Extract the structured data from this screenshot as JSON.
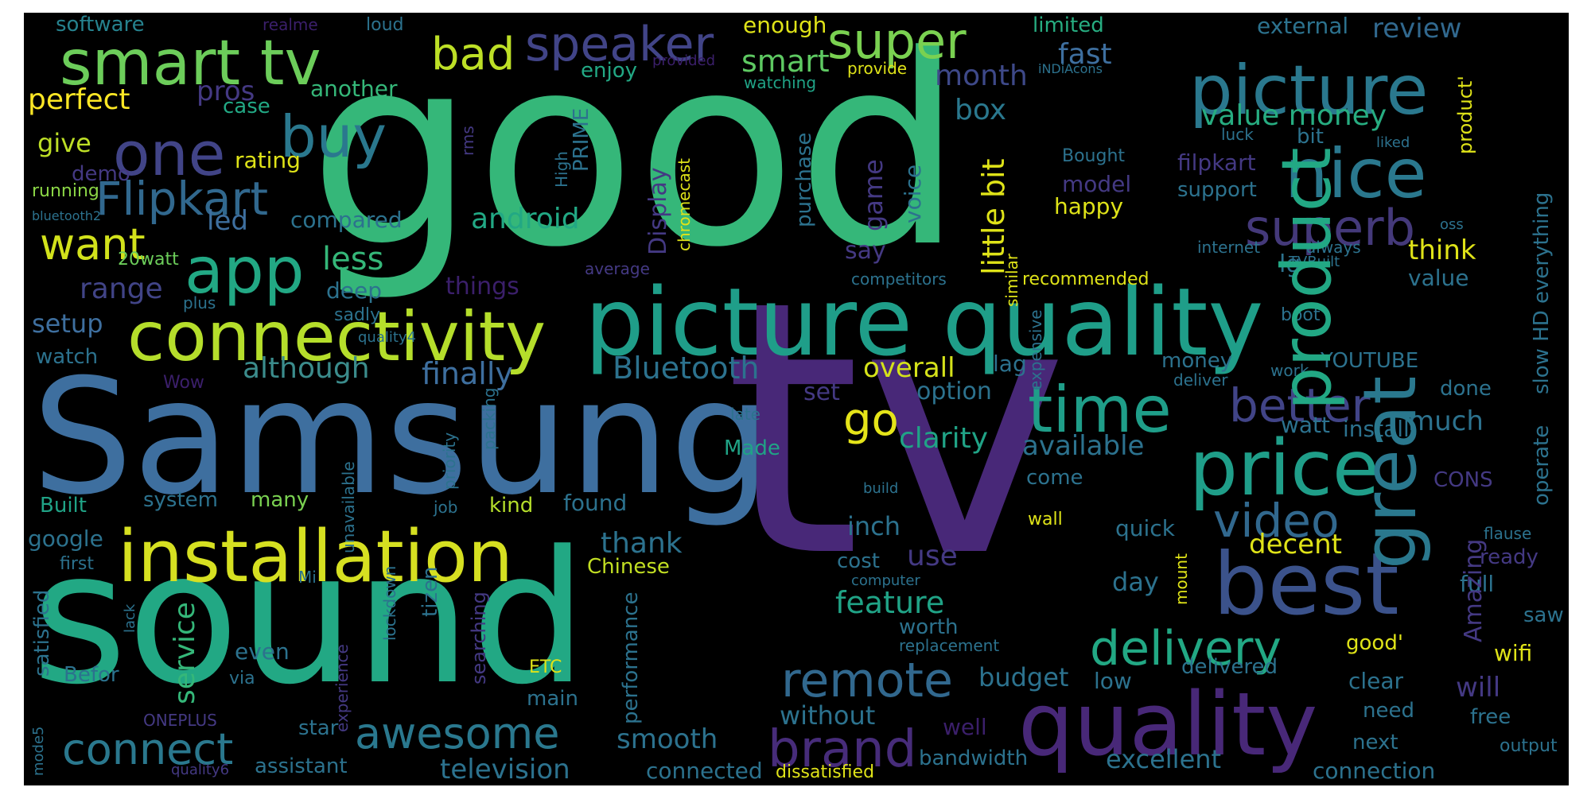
{
  "colors": {
    "background": "#000000",
    "frame": "#ffffff"
  },
  "words": [
    {
      "t": "good",
      "c": "#35b779"
    },
    {
      "t": "tv",
      "c": "#482878"
    },
    {
      "t": "sound",
      "c": "#22a884"
    },
    {
      "t": "Samsung",
      "c": "#3e6f9f"
    },
    {
      "t": "picture quality",
      "c": "#1f9e89"
    },
    {
      "t": "installation",
      "c": "#d6e021"
    },
    {
      "t": "quality",
      "c": "#482878"
    },
    {
      "t": "best",
      "c": "#3b528b"
    },
    {
      "t": "price",
      "c": "#1f9e89"
    },
    {
      "t": "smart tv",
      "c": "#6ccd5a"
    },
    {
      "t": "picture",
      "c": "#2a788e"
    },
    {
      "t": "nice",
      "c": "#2a788e"
    },
    {
      "t": "product",
      "c": "#22a884"
    },
    {
      "t": "connectivity",
      "c": "#b5de2b"
    },
    {
      "t": "great",
      "c": "#2a788e"
    },
    {
      "t": "app",
      "c": "#22a884"
    },
    {
      "t": "one",
      "c": "#414487"
    },
    {
      "t": "buy",
      "c": "#2a788e"
    },
    {
      "t": "Flipkart",
      "c": "#31688e"
    },
    {
      "t": "speaker",
      "c": "#414487"
    },
    {
      "t": "super",
      "c": "#7ad151"
    },
    {
      "t": "bad",
      "c": "#bddf26"
    },
    {
      "t": "superb",
      "c": "#44397a"
    },
    {
      "t": "time",
      "c": "#1f9e89"
    },
    {
      "t": "better",
      "c": "#414487"
    },
    {
      "t": "video",
      "c": "#31688e"
    },
    {
      "t": "delivery",
      "c": "#22a884"
    },
    {
      "t": "remote",
      "c": "#31688e"
    },
    {
      "t": "brand",
      "c": "#472c7a"
    },
    {
      "t": "awesome",
      "c": "#2a788e"
    },
    {
      "t": "connect",
      "c": "#2a788e"
    },
    {
      "t": "want",
      "c": "#d2e21b"
    },
    {
      "t": "go",
      "c": "#e5e419"
    },
    {
      "t": "value money",
      "c": "#27ad81"
    },
    {
      "t": "month",
      "c": "#3e4989"
    },
    {
      "t": "box",
      "c": "#2a788e"
    },
    {
      "t": "software",
      "c": "#26828e"
    },
    {
      "t": "realme",
      "c": "#3b1f6b"
    },
    {
      "t": "loud",
      "c": "#2c728e"
    },
    {
      "t": "enough",
      "c": "#dfe318"
    },
    {
      "t": "limited",
      "c": "#27ad81"
    },
    {
      "t": "external",
      "c": "#2c728e"
    },
    {
      "t": "review",
      "c": "#31688e"
    },
    {
      "t": "fast",
      "c": "#3e6f9f"
    },
    {
      "t": "smart",
      "c": "#5ec962"
    },
    {
      "t": "perfect",
      "c": "#fde725"
    },
    {
      "t": "pros",
      "c": "#443983"
    },
    {
      "t": "enjoy",
      "c": "#22a884"
    },
    {
      "t": "provided",
      "c": "#3b1f6b"
    },
    {
      "t": "provide",
      "c": "#dfe318"
    },
    {
      "t": "iNDiAcons",
      "c": "#2c728e"
    },
    {
      "t": "another",
      "c": "#35b779"
    },
    {
      "t": "watching",
      "c": "#20a386"
    },
    {
      "t": "case",
      "c": "#22a884"
    },
    {
      "t": "give",
      "c": "#bddf26"
    },
    {
      "t": "rating",
      "c": "#dfe318"
    },
    {
      "t": "demo",
      "c": "#443983"
    },
    {
      "t": "running",
      "c": "#8bd646"
    },
    {
      "t": "bluetooth2",
      "c": "#2c728e"
    },
    {
      "t": "led",
      "c": "#3e6f9f"
    },
    {
      "t": "compared",
      "c": "#2c728e"
    },
    {
      "t": "android",
      "c": "#22a884"
    },
    {
      "t": "less",
      "c": "#35b779"
    },
    {
      "t": "20watt",
      "c": "#6ccd5a"
    },
    {
      "t": "range",
      "c": "#414487"
    },
    {
      "t": "deep",
      "c": "#2c728e"
    },
    {
      "t": "plus",
      "c": "#2c728e"
    },
    {
      "t": "sadly",
      "c": "#2c728e"
    },
    {
      "t": "setup",
      "c": "#3e6f9f"
    },
    {
      "t": "quality4",
      "c": "#2c728e"
    },
    {
      "t": "watch",
      "c": "#2c728e"
    },
    {
      "t": "although",
      "c": "#3b8c8c"
    },
    {
      "t": "Wow",
      "c": "#3b1f6b"
    },
    {
      "t": "finally",
      "c": "#3e6f9f"
    },
    {
      "t": "Bluetooth",
      "c": "#2c728e"
    },
    {
      "t": "things",
      "c": "#3b1f6b"
    },
    {
      "t": "overall",
      "c": "#d5e21a"
    },
    {
      "t": "lag",
      "c": "#2c728e"
    },
    {
      "t": "set",
      "c": "#443983"
    },
    {
      "t": "option",
      "c": "#2c728e"
    },
    {
      "t": "clarity",
      "c": "#20a386"
    },
    {
      "t": "available",
      "c": "#2c728e"
    },
    {
      "t": "Made",
      "c": "#20a386"
    },
    {
      "t": "late",
      "c": "#2c728e"
    },
    {
      "t": "build",
      "c": "#2c728e"
    },
    {
      "t": "thank",
      "c": "#2c728e"
    },
    {
      "t": "system",
      "c": "#2c728e"
    },
    {
      "t": "many",
      "c": "#7ad151"
    },
    {
      "t": "Built",
      "c": "#20a386"
    },
    {
      "t": "kind",
      "c": "#b5de2b"
    },
    {
      "t": "found",
      "c": "#2c728e"
    },
    {
      "t": "job",
      "c": "#2c728e"
    },
    {
      "t": "google",
      "c": "#2c728e"
    },
    {
      "t": "first",
      "c": "#2c728e"
    },
    {
      "t": "Chinese",
      "c": "#c2df23"
    },
    {
      "t": "inch",
      "c": "#2c728e"
    },
    {
      "t": "cost",
      "c": "#2c728e"
    },
    {
      "t": "use",
      "c": "#443983"
    },
    {
      "t": "computer",
      "c": "#2c728e"
    },
    {
      "t": "Mi",
      "c": "#2c728e"
    },
    {
      "t": "feature",
      "c": "#20a386"
    },
    {
      "t": "worth",
      "c": "#2c728e"
    },
    {
      "t": "replacement",
      "c": "#2c728e"
    },
    {
      "t": "even",
      "c": "#2c728e"
    },
    {
      "t": "via",
      "c": "#2c728e"
    },
    {
      "t": "Befor",
      "c": "#2c728e"
    },
    {
      "t": "ETC",
      "c": "#dfe318"
    },
    {
      "t": "main",
      "c": "#2c728e"
    },
    {
      "t": "budget",
      "c": "#2c728e"
    },
    {
      "t": "without",
      "c": "#2c728e"
    },
    {
      "t": "well",
      "c": "#3b1f6b"
    },
    {
      "t": "star",
      "c": "#2c728e"
    },
    {
      "t": "ONEPLUS",
      "c": "#443983"
    },
    {
      "t": "quality6",
      "c": "#443983"
    },
    {
      "t": "assistant",
      "c": "#2c728e"
    },
    {
      "t": "smooth",
      "c": "#2c728e"
    },
    {
      "t": "television",
      "c": "#2c728e"
    },
    {
      "t": "connected",
      "c": "#2c728e"
    },
    {
      "t": "dissatisfied",
      "c": "#dfe318"
    },
    {
      "t": "bandwidth",
      "c": "#2c728e"
    },
    {
      "t": "excellent",
      "c": "#2c728e"
    },
    {
      "t": "next",
      "c": "#2c728e"
    },
    {
      "t": "connection",
      "c": "#2c728e"
    },
    {
      "t": "output",
      "c": "#2c728e"
    },
    {
      "t": "low",
      "c": "#2c728e"
    },
    {
      "t": "need",
      "c": "#2c728e"
    },
    {
      "t": "clear",
      "c": "#2c728e"
    },
    {
      "t": "delivered",
      "c": "#2c728e"
    },
    {
      "t": "free",
      "c": "#2c728e"
    },
    {
      "t": "will",
      "c": "#443983"
    },
    {
      "t": "wifi",
      "c": "#dfe318"
    },
    {
      "t": "saw",
      "c": "#2c728e"
    },
    {
      "t": "good'",
      "c": "#dfe318"
    },
    {
      "t": "full",
      "c": "#2c728e"
    },
    {
      "t": "ready",
      "c": "#443983"
    },
    {
      "t": "flause",
      "c": "#2c728e"
    },
    {
      "t": "decent",
      "c": "#dfe318"
    },
    {
      "t": "quick",
      "c": "#2c728e"
    },
    {
      "t": "day",
      "c": "#2c728e"
    },
    {
      "t": "come",
      "c": "#2c728e"
    },
    {
      "t": "wall",
      "c": "#dfe318"
    },
    {
      "t": "done",
      "c": "#2c728e"
    },
    {
      "t": "CONS",
      "c": "#443983"
    },
    {
      "t": "install",
      "c": "#2c728e"
    },
    {
      "t": "watt",
      "c": "#2c728e"
    },
    {
      "t": "much",
      "c": "#2c728e"
    },
    {
      "t": "deliver",
      "c": "#2c728e"
    },
    {
      "t": "money",
      "c": "#2c728e"
    },
    {
      "t": "YOUTUBE",
      "c": "#2c728e"
    },
    {
      "t": "work",
      "c": "#2c728e"
    },
    {
      "t": "boot",
      "c": "#2c728e"
    },
    {
      "t": "value",
      "c": "#2c728e"
    },
    {
      "t": "lg",
      "c": "#2c728e"
    },
    {
      "t": "recommended",
      "c": "#dfe318"
    },
    {
      "t": "competitors",
      "c": "#2c728e"
    },
    {
      "t": "average",
      "c": "#443983"
    },
    {
      "t": "think",
      "c": "#dfe318"
    },
    {
      "t": "internet",
      "c": "#2c728e"
    },
    {
      "t": "always",
      "c": "#2c728e"
    },
    {
      "t": "TVBuilt",
      "c": "#2c728e"
    },
    {
      "t": "happy",
      "c": "#dfe318"
    },
    {
      "t": "model",
      "c": "#443983"
    },
    {
      "t": "support",
      "c": "#2c728e"
    },
    {
      "t": "filpkart",
      "c": "#443983"
    },
    {
      "t": "Bought",
      "c": "#2c728e"
    },
    {
      "t": "bit",
      "c": "#2c728e"
    },
    {
      "t": "luck",
      "c": "#2c728e"
    },
    {
      "t": "liked",
      "c": "#2c728e"
    },
    {
      "t": "oss",
      "c": "#2c728e"
    },
    {
      "t": "say",
      "c": "#443983"
    },
    {
      "t": "rms",
      "c": "#443983"
    },
    {
      "t": "High",
      "c": "#2c728e"
    },
    {
      "t": "PRIME",
      "c": "#2c728e"
    },
    {
      "t": "Display",
      "c": "#443983"
    },
    {
      "t": "chromecast",
      "c": "#dfe318"
    },
    {
      "t": "purchase",
      "c": "#2c728e"
    },
    {
      "t": "game",
      "c": "#443983"
    },
    {
      "t": "voice",
      "c": "#2c728e"
    },
    {
      "t": "little bit",
      "c": "#dfe318"
    },
    {
      "t": "slow HD everything",
      "c": "#2c728e"
    },
    {
      "t": "operate",
      "c": "#2c728e"
    },
    {
      "t": "product'",
      "c": "#dfe318"
    },
    {
      "t": "Amazing",
      "c": "#443983"
    },
    {
      "t": "similar",
      "c": "#dfe318"
    },
    {
      "t": "expensive",
      "c": "#2c728e"
    },
    {
      "t": "mount",
      "c": "#dfe318"
    },
    {
      "t": "searching",
      "c": "#443983"
    },
    {
      "t": "performance",
      "c": "#2c728e"
    },
    {
      "t": "experience",
      "c": "#443983"
    },
    {
      "t": "lockdown",
      "c": "#2c728e"
    },
    {
      "t": "tizen",
      "c": "#2c728e"
    },
    {
      "t": "service",
      "c": "#35b779"
    },
    {
      "t": "satisfied",
      "c": "#2c728e"
    },
    {
      "t": "mode5",
      "c": "#2c728e"
    },
    {
      "t": "lack",
      "c": "#2c728e"
    },
    {
      "t": "unavailable",
      "c": "#2c728e"
    },
    {
      "t": "priority",
      "c": "#2c728e"
    },
    {
      "t": "packing",
      "c": "#2c728e"
    }
  ]
}
